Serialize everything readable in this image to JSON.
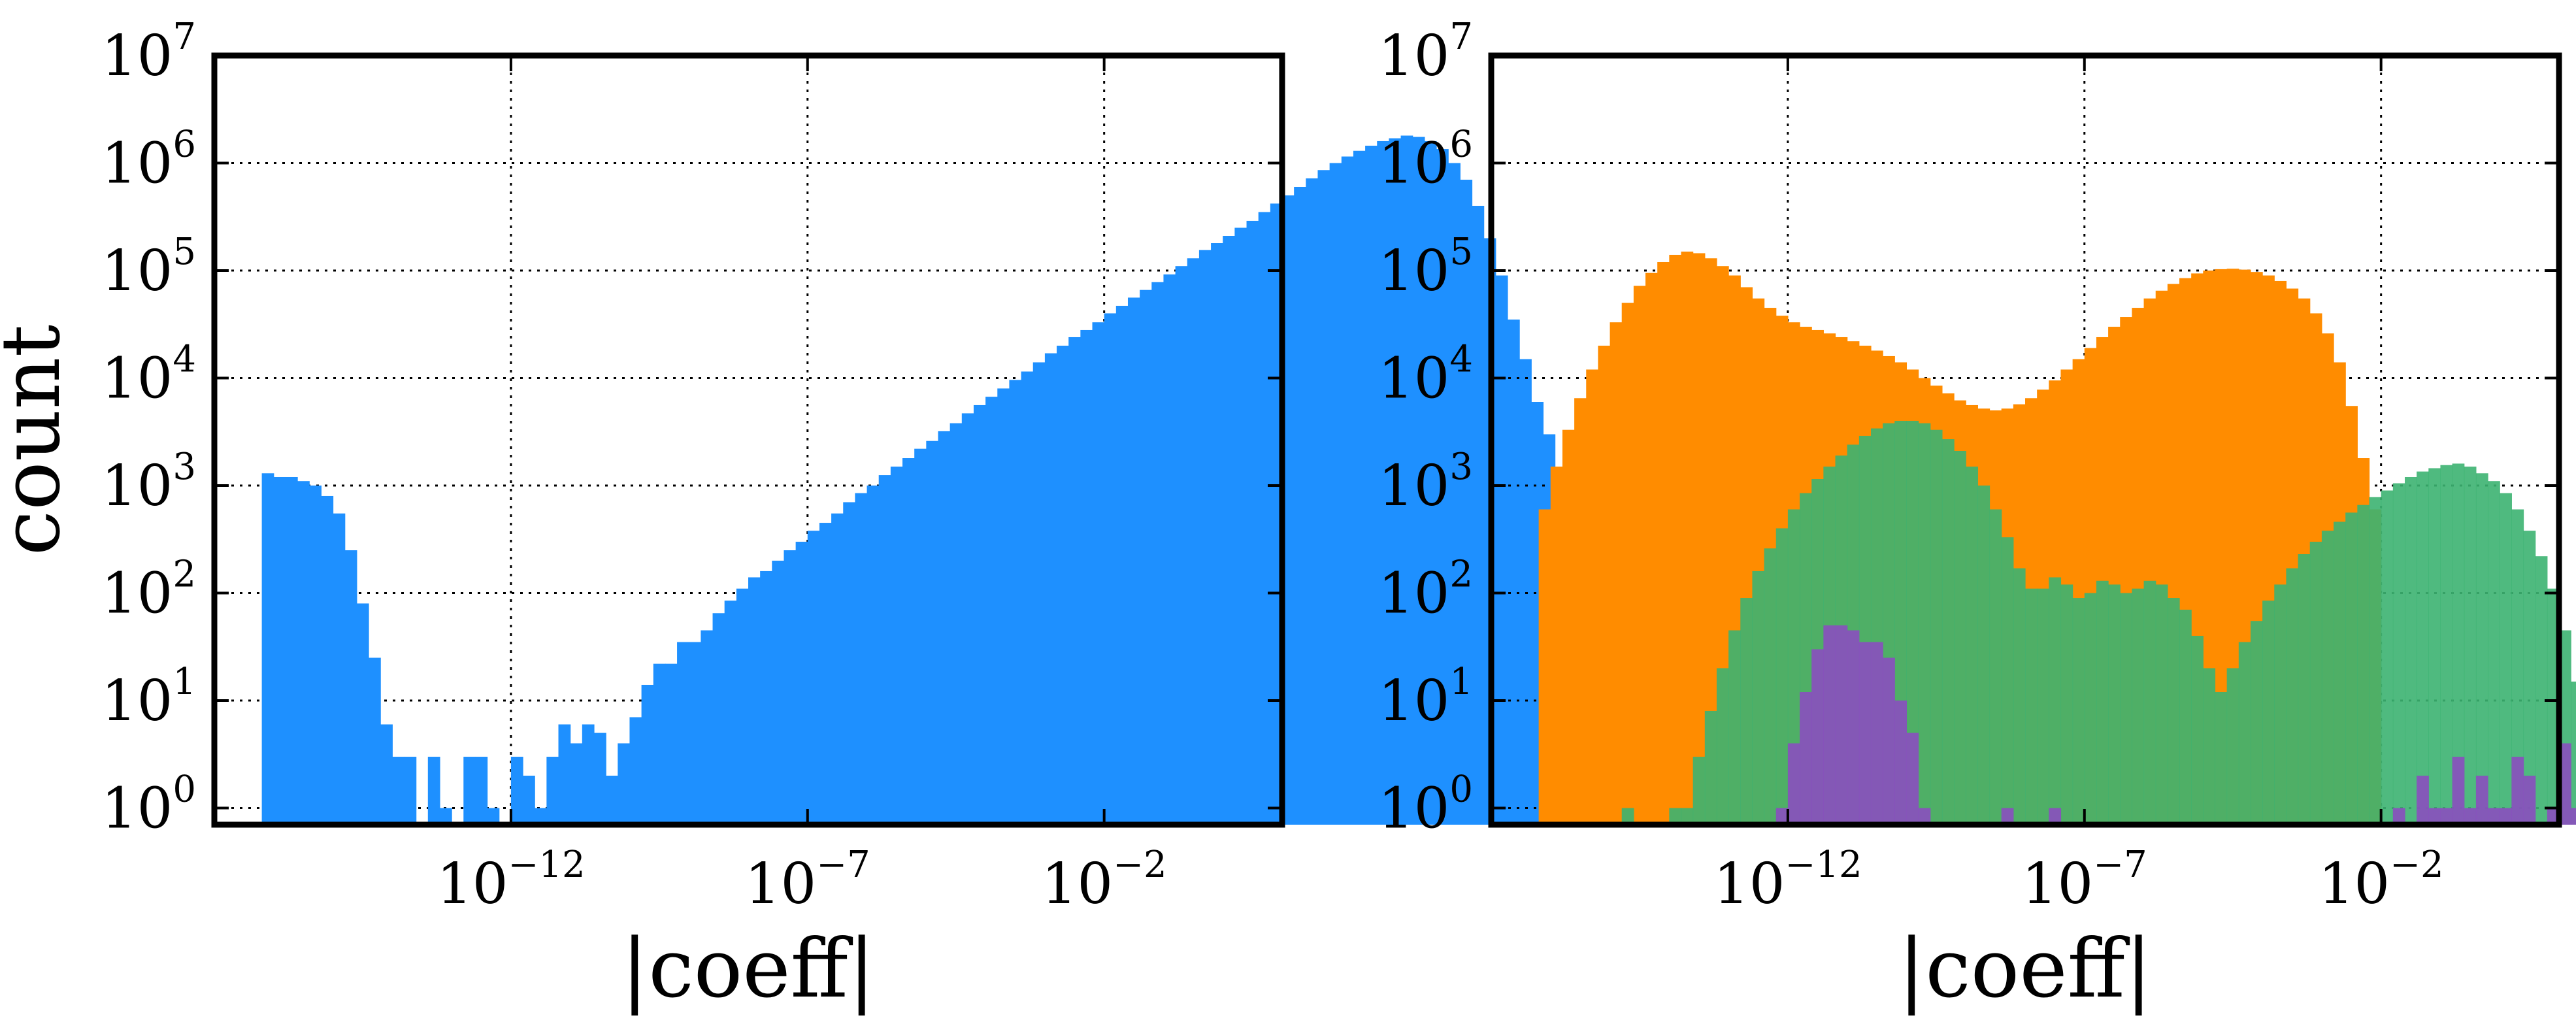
{
  "chart_data": [
    {
      "type": "bar",
      "title": "",
      "xlabel": "|coeff|",
      "ylabel": "count",
      "xscale": "log",
      "yscale": "log",
      "xlim": [
        1e-17,
        10.0
      ],
      "ylim": [
        0.7,
        10000000.0
      ],
      "grid": true,
      "xticks": [
        {
          "base": "10",
          "exp": "−12",
          "value": 1e-12
        },
        {
          "base": "10",
          "exp": "−7",
          "value": 1e-07
        },
        {
          "base": "10",
          "exp": "−2",
          "value": 0.01
        }
      ],
      "yticks": [
        {
          "base": "10",
          "exp": "0",
          "value": 1
        },
        {
          "base": "10",
          "exp": "1",
          "value": 10
        },
        {
          "base": "10",
          "exp": "2",
          "value": 100
        },
        {
          "base": "10",
          "exp": "3",
          "value": 1000
        },
        {
          "base": "10",
          "exp": "4",
          "value": 10000
        },
        {
          "base": "10",
          "exp": "5",
          "value": 100000
        },
        {
          "base": "10",
          "exp": "6",
          "value": 1000000
        },
        {
          "base": "10",
          "exp": "7",
          "value": 10000000
        }
      ],
      "bins_log10": {
        "start": -16.2,
        "width": 0.2
      },
      "series": [
        {
          "color": "#1e90ff",
          "values": [
            1300,
            1200,
            1200,
            1100,
            1000,
            800,
            550,
            250,
            80,
            25,
            6,
            3,
            3,
            0,
            3,
            1,
            0,
            3,
            3,
            1,
            0,
            3,
            2,
            1,
            3,
            6,
            4,
            6,
            5,
            2,
            4,
            7,
            14,
            22,
            22,
            35,
            35,
            45,
            65,
            85,
            110,
            140,
            160,
            200,
            250,
            300,
            380,
            450,
            550,
            700,
            850,
            1000,
            1250,
            1500,
            1800,
            2200,
            2600,
            3200,
            3800,
            4700,
            5600,
            6700,
            8000,
            9600,
            11500,
            14000,
            17000,
            20000,
            24000,
            28000,
            33000,
            40000,
            47000,
            56000,
            66000,
            78000,
            92000,
            110000,
            130000,
            155000,
            180000,
            210000,
            250000,
            290000,
            350000,
            420000,
            500000,
            600000,
            720000,
            860000,
            1000000,
            1150000,
            1300000,
            1450000,
            1600000,
            1700000,
            1800000,
            1750000,
            1600000,
            1350000,
            1000000,
            700000,
            400000,
            200000,
            90000,
            35000,
            15000,
            6000,
            3000
          ]
        }
      ]
    },
    {
      "type": "bar",
      "title": "",
      "xlabel": "|coeff|",
      "ylabel": "",
      "xscale": "log",
      "yscale": "log",
      "xlim": [
        1e-17,
        10.0
      ],
      "ylim": [
        0.7,
        10000000.0
      ],
      "grid": true,
      "xticks": [
        {
          "base": "10",
          "exp": "−12",
          "value": 1e-12
        },
        {
          "base": "10",
          "exp": "−7",
          "value": 1e-07
        },
        {
          "base": "10",
          "exp": "−2",
          "value": 0.01
        }
      ],
      "yticks": [
        {
          "base": "10",
          "exp": "0",
          "value": 1
        },
        {
          "base": "10",
          "exp": "1",
          "value": 10
        },
        {
          "base": "10",
          "exp": "2",
          "value": 100
        },
        {
          "base": "10",
          "exp": "3",
          "value": 1000
        },
        {
          "base": "10",
          "exp": "4",
          "value": 10000
        },
        {
          "base": "10",
          "exp": "5",
          "value": 100000
        },
        {
          "base": "10",
          "exp": "6",
          "value": 1000000
        },
        {
          "base": "10",
          "exp": "7",
          "value": 10000000
        }
      ],
      "bins_log10": {
        "start": -16.2,
        "width": 0.2
      },
      "series": [
        {
          "color": "#ff8c00",
          "values": [
            600,
            1500,
            3300,
            6500,
            12000,
            20000,
            33000,
            50000,
            72000,
            95000,
            120000,
            140000,
            150000,
            145000,
            130000,
            110000,
            90000,
            70000,
            55000,
            45000,
            38000,
            33000,
            30000,
            28000,
            26000,
            24000,
            22000,
            20000,
            18000,
            16000,
            14000,
            12000,
            10000,
            8500,
            7200,
            6200,
            5600,
            5200,
            5000,
            5200,
            5700,
            6500,
            7800,
            9500,
            12000,
            15000,
            19000,
            24000,
            30000,
            37000,
            45000,
            55000,
            65000,
            75000,
            85000,
            94000,
            100000,
            103000,
            104000,
            102000,
            97000,
            90000,
            80000,
            68000,
            55000,
            40000,
            26000,
            14000,
            5500,
            1800,
            600,
            0
          ]
        },
        {
          "color": "#3cb371",
          "values": [
            0,
            0,
            0,
            0,
            0,
            0,
            0,
            1,
            0,
            0,
            0,
            1,
            1,
            3,
            8,
            20,
            45,
            90,
            160,
            260,
            400,
            600,
            850,
            1150,
            1500,
            1900,
            2400,
            2900,
            3400,
            3800,
            4000,
            4000,
            3800,
            3300,
            2700,
            2100,
            1500,
            1000,
            600,
            330,
            170,
            110,
            110,
            140,
            120,
            90,
            100,
            130,
            120,
            100,
            110,
            130,
            120,
            90,
            70,
            40,
            20,
            12,
            20,
            35,
            55,
            85,
            120,
            170,
            230,
            300,
            380,
            460,
            560,
            660,
            780,
            900,
            1050,
            1200,
            1350,
            1450,
            1550,
            1600,
            1500,
            1300,
            1100,
            850,
            600,
            380,
            220,
            110,
            45,
            15,
            6,
            3,
            1
          ]
        },
        {
          "color": "#8a4fbf",
          "values": [
            0,
            0,
            0,
            0,
            0,
            0,
            0,
            0,
            0,
            0,
            0,
            0,
            0,
            0,
            0,
            0,
            0,
            0,
            0,
            0,
            1,
            4,
            12,
            30,
            50,
            50,
            45,
            35,
            35,
            25,
            10,
            5,
            1,
            0,
            0,
            0,
            0,
            0,
            0,
            1,
            0,
            0,
            0,
            1,
            0,
            0,
            0,
            0,
            0,
            0,
            0,
            0,
            0,
            0,
            0,
            0,
            0,
            0,
            0,
            0,
            0,
            0,
            0,
            0,
            0,
            0,
            0,
            0,
            0,
            0,
            0,
            0,
            1,
            0,
            2,
            1,
            1,
            3,
            1,
            2,
            1,
            1,
            3,
            2,
            0,
            1,
            4,
            1,
            2,
            6,
            3,
            4,
            5,
            2,
            1,
            5,
            1,
            0
          ]
        }
      ]
    }
  ]
}
